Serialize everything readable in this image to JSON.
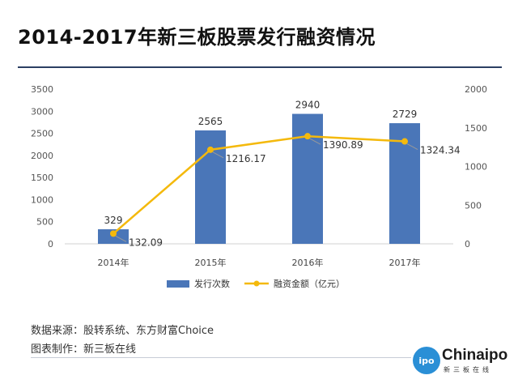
{
  "title": "2014-2017年新三板股票发行融资情况",
  "chart_data": {
    "type": "bar",
    "categories": [
      "2014年",
      "2015年",
      "2016年",
      "2017年"
    ],
    "series": [
      {
        "name": "发行次数",
        "type": "bar",
        "axis": "left",
        "values": [
          329,
          2565,
          2940,
          2729
        ],
        "color": "#4a76b8"
      },
      {
        "name": "融资金额（亿元）",
        "type": "line",
        "axis": "right",
        "values": [
          132.09,
          1216.17,
          1390.89,
          1324.34
        ],
        "color": "#f4b90c"
      }
    ],
    "bar_labels": [
      "329",
      "2565",
      "2940",
      "2729"
    ],
    "line_labels": [
      "132.09",
      "1216.17",
      "1390.89",
      "1324.34"
    ],
    "y_left": {
      "min": 0,
      "max": 3500,
      "ticks": [
        "0",
        "500",
        "1000",
        "1500",
        "2000",
        "2500",
        "3000",
        "3500"
      ]
    },
    "y_right": {
      "min": 0,
      "max": 2000,
      "ticks": [
        "0",
        "500",
        "1000",
        "1500",
        "2000"
      ]
    },
    "grid": false,
    "legend_position": "bottom"
  },
  "footer": {
    "source": "数据来源：股转系统、东方财富Choice",
    "maker": "图表制作：新三板在线"
  },
  "logo": {
    "badge": "ipo",
    "name": "Chinaipo",
    "sub": "新三板在线"
  }
}
